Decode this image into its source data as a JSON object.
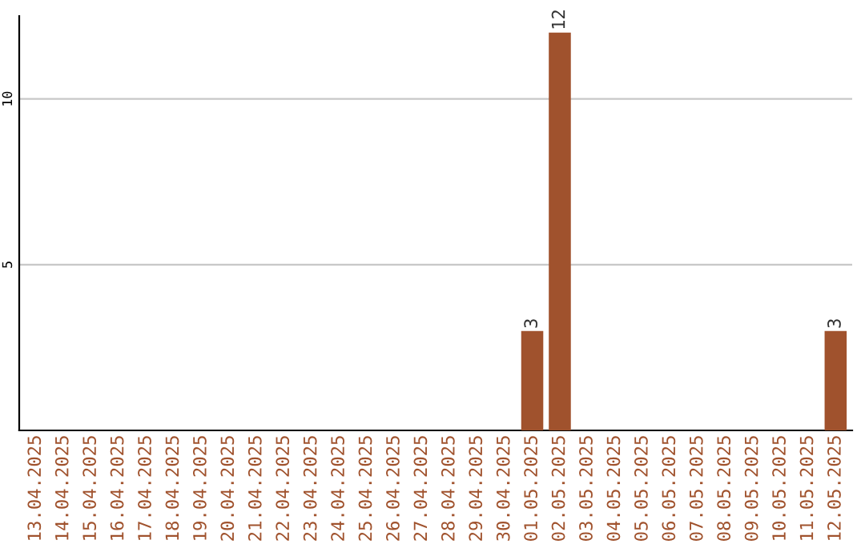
{
  "chart_data": {
    "type": "bar",
    "categories": [
      "13.04.2025",
      "14.04.2025",
      "15.04.2025",
      "16.04.2025",
      "17.04.2025",
      "18.04.2025",
      "19.04.2025",
      "20.04.2025",
      "21.04.2025",
      "22.04.2025",
      "23.04.2025",
      "24.04.2025",
      "25.04.2025",
      "26.04.2025",
      "27.04.2025",
      "28.04.2025",
      "29.04.2025",
      "30.04.2025",
      "01.05.2025",
      "02.05.2025",
      "03.05.2025",
      "04.05.2025",
      "05.05.2025",
      "06.05.2025",
      "07.05.2025",
      "08.05.2025",
      "09.05.2025",
      "10.05.2025",
      "11.05.2025",
      "12.05.2025"
    ],
    "values": [
      0,
      0,
      0,
      0,
      0,
      0,
      0,
      0,
      0,
      0,
      0,
      0,
      0,
      0,
      0,
      0,
      0,
      0,
      3,
      12,
      0,
      0,
      0,
      0,
      0,
      0,
      0,
      0,
      0,
      3
    ],
    "value_labels": [
      null,
      null,
      null,
      null,
      null,
      null,
      null,
      null,
      null,
      null,
      null,
      null,
      null,
      null,
      null,
      null,
      null,
      null,
      "3",
      "12",
      null,
      null,
      null,
      null,
      null,
      null,
      null,
      null,
      null,
      "3"
    ],
    "color": "#a0522d",
    "ylim": [
      0,
      12.5
    ],
    "yticks": [
      5,
      10
    ],
    "grid": "y"
  }
}
